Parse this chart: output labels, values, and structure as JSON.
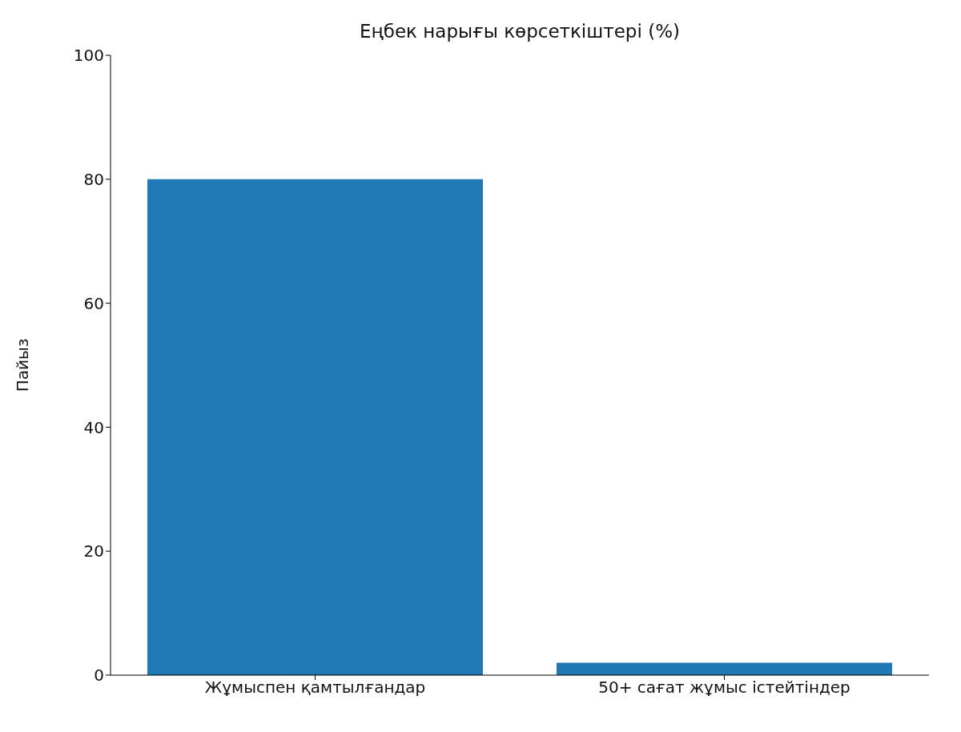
{
  "chart_data": {
    "type": "bar",
    "title": "Еңбек нарығы көрсеткіштері (%)",
    "ylabel": "Пайыз",
    "categories": [
      "Жұмыспен қамтылғандар",
      "50+ сағат жұмыс істейтіндер"
    ],
    "values": [
      80,
      2
    ],
    "color": "#1f77b4",
    "ylim": [
      0,
      100
    ],
    "yticks": [
      0,
      20,
      40,
      60,
      80,
      100
    ],
    "grid": false,
    "legend": false
  }
}
